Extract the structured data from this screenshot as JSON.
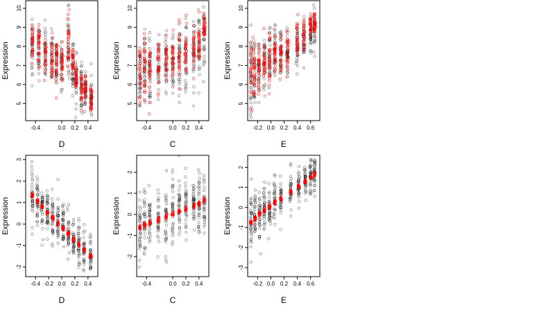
{
  "chart_data": [
    {
      "type": "scatter",
      "xlabel": "D",
      "ylabel": "Expression",
      "xlim": [
        -0.55,
        0.55
      ],
      "ylim": [
        4.1,
        10.4
      ],
      "xticks": [
        -0.4,
        0,
        0.2,
        0.4
      ],
      "xtick_labels": [
        "-0.4",
        "0.0",
        "0.2",
        "0.4"
      ],
      "yticks": [
        5,
        6,
        7,
        8,
        9,
        10
      ],
      "ytick_labels": [
        "5",
        "6",
        "7",
        "8",
        "9",
        "10"
      ],
      "groups": [
        {
          "x": -0.45,
          "obs_mean": 7.9,
          "obs_sd": 0.75,
          "fit_mean": 8.0,
          "fit_sd": 0.6
        },
        {
          "x": -0.35,
          "obs_mean": 7.7,
          "obs_sd": 0.75,
          "fit_mean": 7.8,
          "fit_sd": 0.55
        },
        {
          "x": -0.25,
          "obs_mean": 7.5,
          "obs_sd": 0.75,
          "fit_mean": 7.6,
          "fit_sd": 0.55
        },
        {
          "x": -0.15,
          "obs_mean": 7.4,
          "obs_sd": 0.7,
          "fit_mean": 7.4,
          "fit_sd": 0.55
        },
        {
          "x": -0.08,
          "obs_mean": 7.3,
          "obs_sd": 0.7,
          "fit_mean": 7.3,
          "fit_sd": 0.5
        },
        {
          "x": 0.0,
          "obs_mean": 7.2,
          "obs_sd": 0.7,
          "fit_mean": 7.1,
          "fit_sd": 0.5
        },
        {
          "x": 0.1,
          "obs_mean": 8.1,
          "obs_sd": 0.9,
          "fit_mean": 8.3,
          "fit_sd": 0.8
        },
        {
          "x": 0.17,
          "obs_mean": 6.9,
          "obs_sd": 0.7,
          "fit_mean": 7.0,
          "fit_sd": 0.5
        },
        {
          "x": 0.22,
          "obs_mean": 6.3,
          "obs_sd": 0.6,
          "fit_mean": 6.3,
          "fit_sd": 0.45
        },
        {
          "x": 0.3,
          "obs_mean": 5.9,
          "obs_sd": 0.55,
          "fit_mean": 5.9,
          "fit_sd": 0.45
        },
        {
          "x": 0.36,
          "obs_mean": 5.6,
          "obs_sd": 0.55,
          "fit_mean": 5.7,
          "fit_sd": 0.4
        },
        {
          "x": 0.45,
          "obs_mean": 5.3,
          "obs_sd": 0.55,
          "fit_mean": 5.3,
          "fit_sd": 0.4
        }
      ]
    },
    {
      "type": "scatter",
      "xlabel": "C",
      "ylabel": "Expression",
      "xlim": [
        -0.55,
        0.55
      ],
      "ylim": [
        4.1,
        10.4
      ],
      "xticks": [
        -0.4,
        0,
        0.2,
        0.4
      ],
      "xtick_labels": [
        "-0.4",
        "0.0",
        "0.2",
        "0.4"
      ],
      "yticks": [
        5,
        6,
        7,
        8,
        9,
        10
      ],
      "ytick_labels": [
        "5",
        "6",
        "7",
        "8",
        "9",
        "10"
      ],
      "groups": [
        {
          "x": -0.5,
          "obs_mean": 6.6,
          "obs_sd": 0.9,
          "fit_mean": 6.7,
          "fit_sd": 0.8
        },
        {
          "x": -0.43,
          "obs_mean": 6.8,
          "obs_sd": 0.9,
          "fit_mean": 6.9,
          "fit_sd": 0.8
        },
        {
          "x": -0.35,
          "obs_mean": 6.7,
          "obs_sd": 0.9,
          "fit_mean": 6.8,
          "fit_sd": 0.8
        },
        {
          "x": -0.22,
          "obs_mean": 7.0,
          "obs_sd": 0.8,
          "fit_mean": 7.1,
          "fit_sd": 0.7
        },
        {
          "x": -0.1,
          "obs_mean": 6.9,
          "obs_sd": 0.9,
          "fit_mean": 7.2,
          "fit_sd": 0.6
        },
        {
          "x": 0.0,
          "obs_mean": 7.0,
          "obs_sd": 0.9,
          "fit_mean": 7.3,
          "fit_sd": 0.6
        },
        {
          "x": 0.1,
          "obs_mean": 7.4,
          "obs_sd": 0.9,
          "fit_mean": 7.5,
          "fit_sd": 0.7
        },
        {
          "x": 0.2,
          "obs_mean": 7.5,
          "obs_sd": 0.9,
          "fit_mean": 7.6,
          "fit_sd": 0.7
        },
        {
          "x": 0.32,
          "obs_mean": 7.7,
          "obs_sd": 0.9,
          "fit_mean": 7.8,
          "fit_sd": 0.7
        },
        {
          "x": 0.4,
          "obs_mean": 7.9,
          "obs_sd": 0.9,
          "fit_mean": 8.0,
          "fit_sd": 0.7
        },
        {
          "x": 0.48,
          "obs_mean": 8.4,
          "obs_sd": 0.8,
          "fit_mean": 9.0,
          "fit_sd": 0.3
        }
      ]
    },
    {
      "type": "scatter",
      "xlabel": "E",
      "ylabel": "Expression",
      "xlim": [
        -0.35,
        0.74
      ],
      "ylim": [
        4.1,
        10.4
      ],
      "xticks": [
        -0.2,
        0,
        0.2,
        0.4,
        0.6
      ],
      "xtick_labels": [
        "-0.2",
        "0.0",
        "0.2",
        "0.4",
        "0.6"
      ],
      "yticks": [
        5,
        6,
        7,
        8,
        9,
        10
      ],
      "ytick_labels": [
        "5",
        "6",
        "7",
        "8",
        "9",
        "10"
      ],
      "groups": [
        {
          "x": -0.3,
          "obs_mean": 6.5,
          "obs_sd": 1.0,
          "fit_mean": 6.6,
          "fit_sd": 0.9
        },
        {
          "x": -0.25,
          "obs_mean": 6.7,
          "obs_sd": 0.9,
          "fit_mean": 6.8,
          "fit_sd": 0.8
        },
        {
          "x": -0.18,
          "obs_mean": 6.9,
          "obs_sd": 0.8,
          "fit_mean": 7.0,
          "fit_sd": 0.7
        },
        {
          "x": -0.1,
          "obs_mean": 7.1,
          "obs_sd": 0.8,
          "fit_mean": 7.2,
          "fit_sd": 0.7
        },
        {
          "x": -0.02,
          "obs_mean": 7.3,
          "obs_sd": 0.8,
          "fit_mean": 7.4,
          "fit_sd": 0.7
        },
        {
          "x": 0.06,
          "obs_mean": 7.5,
          "obs_sd": 0.8,
          "fit_mean": 7.6,
          "fit_sd": 0.6
        },
        {
          "x": 0.15,
          "obs_mean": 7.6,
          "obs_sd": 0.7,
          "fit_mean": 7.7,
          "fit_sd": 0.6
        },
        {
          "x": 0.25,
          "obs_mean": 7.7,
          "obs_sd": 0.6,
          "fit_mean": 7.9,
          "fit_sd": 0.5
        },
        {
          "x": 0.4,
          "obs_mean": 8.0,
          "obs_sd": 0.6,
          "fit_mean": 8.3,
          "fit_sd": 0.5
        },
        {
          "x": 0.5,
          "obs_mean": 8.3,
          "obs_sd": 0.6,
          "fit_mean": 8.6,
          "fit_sd": 0.5
        },
        {
          "x": 0.6,
          "obs_mean": 8.8,
          "obs_sd": 0.6,
          "fit_mean": 9.1,
          "fit_sd": 0.3
        },
        {
          "x": 0.66,
          "obs_mean": 9.0,
          "obs_sd": 0.6,
          "fit_mean": 9.2,
          "fit_sd": 0.3
        }
      ]
    },
    {
      "type": "scatter",
      "xlabel": "D",
      "ylabel": "Expression",
      "xlim": [
        -0.55,
        0.55
      ],
      "ylim": [
        -2.45,
        3.2
      ],
      "xticks": [
        -0.4,
        -0.2,
        0,
        0.2,
        0.4
      ],
      "xtick_labels": [
        "-0.4",
        "-0.2",
        "0.0",
        "0.2",
        "0.4"
      ],
      "yticks": [
        -2,
        -1,
        0,
        1,
        2,
        3
      ],
      "ytick_labels": [
        "-2",
        "-1",
        "0",
        "1",
        "2",
        "3"
      ],
      "groups": [
        {
          "x": -0.45,
          "obs_mean": 1.3,
          "obs_sd": 0.7,
          "fit_mean": 1.35,
          "fit_sd": 0.05
        },
        {
          "x": -0.37,
          "obs_mean": 1.0,
          "obs_sd": 0.65,
          "fit_mean": 1.05,
          "fit_sd": 0.05
        },
        {
          "x": -0.3,
          "obs_mean": 0.8,
          "obs_sd": 0.6,
          "fit_mean": 0.8,
          "fit_sd": 0.05
        },
        {
          "x": -0.22,
          "obs_mean": 0.6,
          "obs_sd": 0.6,
          "fit_mean": 0.55,
          "fit_sd": 0.05
        },
        {
          "x": -0.14,
          "obs_mean": 0.35,
          "obs_sd": 0.6,
          "fit_mean": 0.3,
          "fit_sd": 0.05
        },
        {
          "x": -0.06,
          "obs_mean": 0.1,
          "obs_sd": 0.55,
          "fit_mean": 0.05,
          "fit_sd": 0.05
        },
        {
          "x": 0.02,
          "obs_mean": -0.15,
          "obs_sd": 0.55,
          "fit_mean": -0.2,
          "fit_sd": 0.05
        },
        {
          "x": 0.1,
          "obs_mean": -0.4,
          "obs_sd": 0.55,
          "fit_mean": -0.45,
          "fit_sd": 0.05
        },
        {
          "x": 0.18,
          "obs_mean": -0.65,
          "obs_sd": 0.55,
          "fit_mean": -0.7,
          "fit_sd": 0.05
        },
        {
          "x": 0.26,
          "obs_mean": -0.95,
          "obs_sd": 0.55,
          "fit_mean": -0.95,
          "fit_sd": 0.05
        },
        {
          "x": 0.34,
          "obs_mean": -1.15,
          "obs_sd": 0.5,
          "fit_mean": -1.2,
          "fit_sd": 0.05
        },
        {
          "x": 0.44,
          "obs_mean": -1.45,
          "obs_sd": 0.45,
          "fit_mean": -1.5,
          "fit_sd": 0.05
        }
      ]
    },
    {
      "type": "scatter",
      "xlabel": "C",
      "ylabel": "Expression",
      "xlim": [
        -0.55,
        0.55
      ],
      "ylim": [
        -2.95,
        2.8
      ],
      "xticks": [
        -0.4,
        0,
        0.2,
        0.4
      ],
      "xtick_labels": [
        "-0.4",
        "0.0",
        "0.2",
        "0.4"
      ],
      "yticks": [
        -2,
        -1,
        0,
        1,
        2
      ],
      "ytick_labels": [
        "-2",
        "-1",
        "0",
        "1",
        "2"
      ],
      "groups": [
        {
          "x": -0.5,
          "obs_mean": -0.6,
          "obs_sd": 0.8,
          "fit_mean": -0.6,
          "fit_sd": 0.05
        },
        {
          "x": -0.43,
          "obs_mean": -0.5,
          "obs_sd": 0.8,
          "fit_mean": -0.5,
          "fit_sd": 0.05
        },
        {
          "x": -0.35,
          "obs_mean": -0.4,
          "obs_sd": 0.8,
          "fit_mean": -0.4,
          "fit_sd": 0.05
        },
        {
          "x": -0.22,
          "obs_mean": -0.25,
          "obs_sd": 0.75,
          "fit_mean": -0.25,
          "fit_sd": 0.05
        },
        {
          "x": -0.1,
          "obs_mean": -0.1,
          "obs_sd": 0.8,
          "fit_mean": -0.1,
          "fit_sd": 0.05
        },
        {
          "x": 0.0,
          "obs_mean": 0.0,
          "obs_sd": 0.8,
          "fit_mean": 0.0,
          "fit_sd": 0.05
        },
        {
          "x": 0.1,
          "obs_mean": 0.15,
          "obs_sd": 0.8,
          "fit_mean": 0.15,
          "fit_sd": 0.05
        },
        {
          "x": 0.2,
          "obs_mean": 0.25,
          "obs_sd": 0.75,
          "fit_mean": 0.25,
          "fit_sd": 0.05
        },
        {
          "x": 0.32,
          "obs_mean": 0.4,
          "obs_sd": 0.75,
          "fit_mean": 0.4,
          "fit_sd": 0.05
        },
        {
          "x": 0.4,
          "obs_mean": 0.5,
          "obs_sd": 0.75,
          "fit_mean": 0.5,
          "fit_sd": 0.05
        },
        {
          "x": 0.48,
          "obs_mean": 0.8,
          "obs_sd": 0.8,
          "fit_mean": 0.7,
          "fit_sd": 0.05
        }
      ]
    },
    {
      "type": "scatter",
      "xlabel": "E",
      "ylabel": "Expression",
      "xlim": [
        -0.35,
        0.74
      ],
      "ylim": [
        -3.45,
        2.6
      ],
      "xticks": [
        -0.2,
        0,
        0.2,
        0.4,
        0.6
      ],
      "xtick_labels": [
        "-0.2",
        "0.0",
        "0.2",
        "0.4",
        "0.6"
      ],
      "yticks": [
        -3,
        -2,
        -1,
        0,
        1,
        2
      ],
      "ytick_labels": [
        "-3",
        "-2",
        "-1",
        "0",
        "1",
        "2"
      ],
      "groups": [
        {
          "x": -0.3,
          "obs_mean": -0.8,
          "obs_sd": 0.8,
          "fit_mean": -0.75,
          "fit_sd": 0.05
        },
        {
          "x": -0.24,
          "obs_mean": -0.55,
          "obs_sd": 0.7,
          "fit_mean": -0.55,
          "fit_sd": 0.05
        },
        {
          "x": -0.17,
          "obs_mean": -0.35,
          "obs_sd": 0.65,
          "fit_mean": -0.35,
          "fit_sd": 0.05
        },
        {
          "x": -0.1,
          "obs_mean": -0.15,
          "obs_sd": 0.6,
          "fit_mean": -0.15,
          "fit_sd": 0.05
        },
        {
          "x": -0.02,
          "obs_mean": 0.05,
          "obs_sd": 0.6,
          "fit_mean": 0.05,
          "fit_sd": 0.05
        },
        {
          "x": 0.06,
          "obs_mean": 0.25,
          "obs_sd": 0.6,
          "fit_mean": 0.25,
          "fit_sd": 0.05
        },
        {
          "x": 0.15,
          "obs_mean": 0.45,
          "obs_sd": 0.55,
          "fit_mean": 0.45,
          "fit_sd": 0.05
        },
        {
          "x": 0.3,
          "obs_mean": 0.8,
          "obs_sd": 0.5,
          "fit_mean": 0.8,
          "fit_sd": 0.05
        },
        {
          "x": 0.42,
          "obs_mean": 1.05,
          "obs_sd": 0.45,
          "fit_mean": 1.05,
          "fit_sd": 0.05
        },
        {
          "x": 0.52,
          "obs_mean": 1.3,
          "obs_sd": 0.45,
          "fit_mean": 1.3,
          "fit_sd": 0.05
        },
        {
          "x": 0.6,
          "obs_mean": 1.5,
          "obs_sd": 0.45,
          "fit_mean": 1.5,
          "fit_sd": 0.05
        },
        {
          "x": 0.66,
          "obs_mean": 1.65,
          "obs_sd": 0.45,
          "fit_mean": 1.65,
          "fit_sd": 0.05
        }
      ]
    }
  ]
}
